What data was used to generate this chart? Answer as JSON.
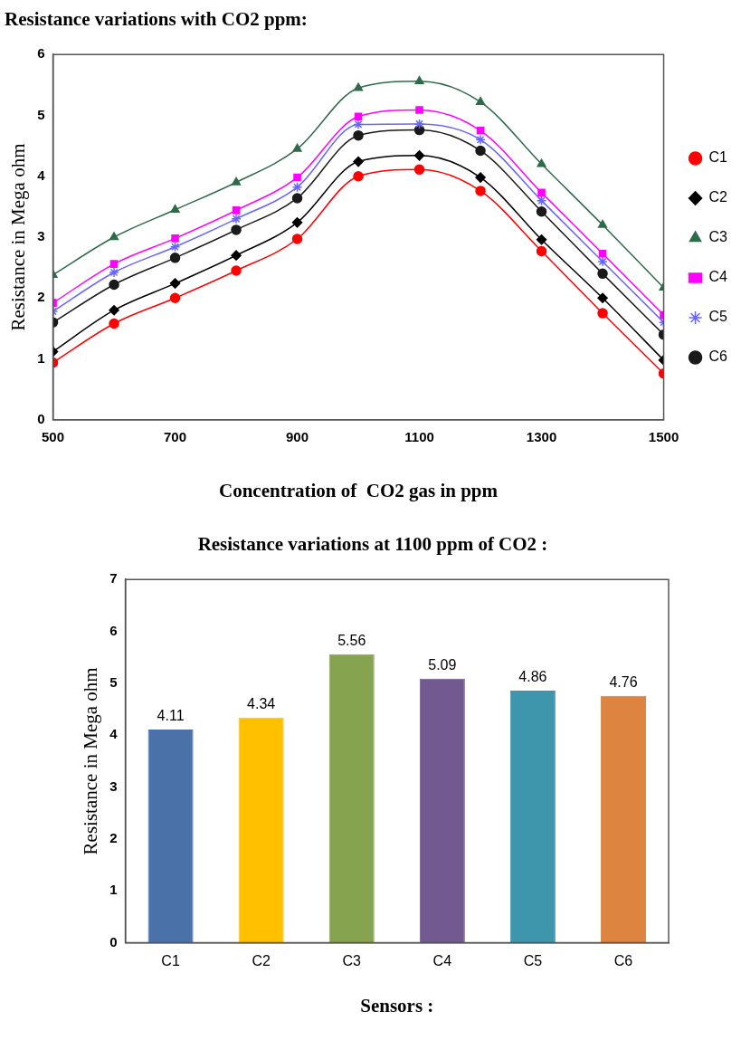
{
  "chart_data": [
    {
      "type": "line",
      "title": "Resistance variations with CO2 ppm:",
      "xlabel": "Concentration of  CO2 gas in ppm",
      "ylabel": "Resistance in Mega ohm",
      "x": [
        500,
        600,
        700,
        800,
        900,
        1000,
        1100,
        1200,
        1300,
        1400,
        1500
      ],
      "xlim": [
        500,
        1500
      ],
      "xticks": [
        500,
        700,
        900,
        1100,
        1300,
        1500
      ],
      "ylim": [
        0,
        6
      ],
      "yticks": [
        0,
        1,
        2,
        3,
        4,
        5,
        6
      ],
      "grid": false,
      "legend": "right",
      "line_style": "solid",
      "series": [
        {
          "name": "C1",
          "color": "#ff0000",
          "marker": "circle",
          "values": [
            0.94,
            1.58,
            2.0,
            2.45,
            2.97,
            4.0,
            4.11,
            3.76,
            2.77,
            1.75,
            0.76
          ]
        },
        {
          "name": "C2",
          "color": "#000000",
          "marker": "diamond",
          "values": [
            1.12,
            1.8,
            2.24,
            2.7,
            3.24,
            4.24,
            4.34,
            3.98,
            2.96,
            2.0,
            0.98
          ]
        },
        {
          "name": "C3",
          "color": "#2e6b4a",
          "marker": "triangle",
          "values": [
            2.38,
            3.0,
            3.45,
            3.9,
            4.45,
            5.45,
            5.56,
            5.22,
            4.2,
            3.2,
            2.17
          ]
        },
        {
          "name": "C4",
          "color": "#ff00ff",
          "marker": "square",
          "values": [
            1.92,
            2.56,
            2.98,
            3.44,
            3.98,
            4.98,
            5.09,
            4.75,
            3.73,
            2.73,
            1.72
          ]
        },
        {
          "name": "C5",
          "color": "#6666ff",
          "marker": "cross",
          "values": [
            1.78,
            2.42,
            2.84,
            3.3,
            3.82,
            4.85,
            4.86,
            4.6,
            3.6,
            2.6,
            1.6
          ]
        },
        {
          "name": "C6",
          "color": "#1a1a1a",
          "marker": "circle",
          "values": [
            1.6,
            2.22,
            2.66,
            3.12,
            3.64,
            4.67,
            4.76,
            4.42,
            3.42,
            2.4,
            1.4
          ]
        }
      ]
    },
    {
      "type": "bar",
      "title": "Resistance variations at 1100 ppm of CO2 :",
      "xlabel": "Sensors :",
      "ylabel": "Resistance in Mega ohm",
      "categories": [
        "C1",
        "C2",
        "C3",
        "C4",
        "C5",
        "C6"
      ],
      "values": [
        4.11,
        4.34,
        5.56,
        5.09,
        4.86,
        4.76
      ],
      "colors": [
        "#4a72a8",
        "#ffc000",
        "#86a34f",
        "#72598f",
        "#3e96ad",
        "#dd8440"
      ],
      "ylim": [
        0,
        7
      ],
      "yticks": [
        0,
        1,
        2,
        3,
        4,
        5,
        6,
        7
      ],
      "grid": false,
      "legend": false,
      "data_labels": true
    }
  ]
}
